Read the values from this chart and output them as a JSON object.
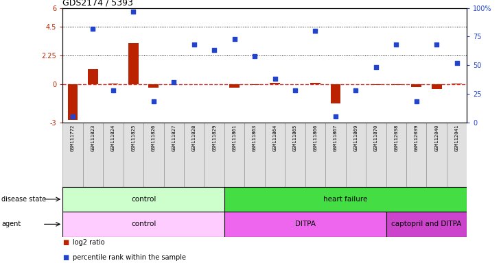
{
  "title": "GDS2174 / 5393",
  "samples": [
    "GSM111772",
    "GSM111823",
    "GSM111824",
    "GSM111825",
    "GSM111826",
    "GSM111827",
    "GSM111828",
    "GSM111829",
    "GSM111861",
    "GSM111863",
    "GSM111864",
    "GSM111865",
    "GSM111866",
    "GSM111867",
    "GSM111869",
    "GSM111870",
    "GSM112038",
    "GSM112039",
    "GSM112040",
    "GSM112041"
  ],
  "log2_ratio": [
    -2.8,
    1.2,
    0.05,
    3.2,
    -0.25,
    -0.03,
    -0.03,
    -0.03,
    -0.25,
    -0.08,
    0.12,
    -0.03,
    0.08,
    -1.5,
    -0.03,
    -0.06,
    -0.08,
    -0.2,
    -0.4,
    0.06
  ],
  "percentile": [
    5,
    82,
    28,
    97,
    18,
    35,
    68,
    63,
    73,
    58,
    38,
    28,
    80,
    5,
    28,
    48,
    68,
    18,
    68,
    52
  ],
  "ylim_left": [
    -3,
    6
  ],
  "ylim_right": [
    0,
    100
  ],
  "hlines": [
    4.5,
    2.25
  ],
  "right_ticks": [
    0,
    25,
    50,
    75,
    100
  ],
  "right_tick_labels": [
    "0",
    "25",
    "50",
    "75",
    "100%"
  ],
  "left_ticks": [
    -3,
    0,
    2.25,
    4.5,
    6
  ],
  "left_tick_labels": [
    "-3",
    "0",
    "2.25",
    "4.5",
    "6"
  ],
  "disease_state_groups": [
    {
      "label": "control",
      "start": 0,
      "end": 8,
      "color": "#ccffcc"
    },
    {
      "label": "heart failure",
      "start": 8,
      "end": 20,
      "color": "#44dd44"
    }
  ],
  "agent_groups": [
    {
      "label": "control",
      "start": 0,
      "end": 8,
      "color": "#ffccff"
    },
    {
      "label": "DITPA",
      "start": 8,
      "end": 16,
      "color": "#ee66ee"
    },
    {
      "label": "captopril and DITPA",
      "start": 16,
      "end": 20,
      "color": "#cc44cc"
    }
  ],
  "bar_color": "#bb2200",
  "scatter_color": "#2244cc",
  "dash_color": "#cc3333",
  "bg_color": "#ffffff",
  "label_bg": "#cccccc",
  "n_samples": 20
}
